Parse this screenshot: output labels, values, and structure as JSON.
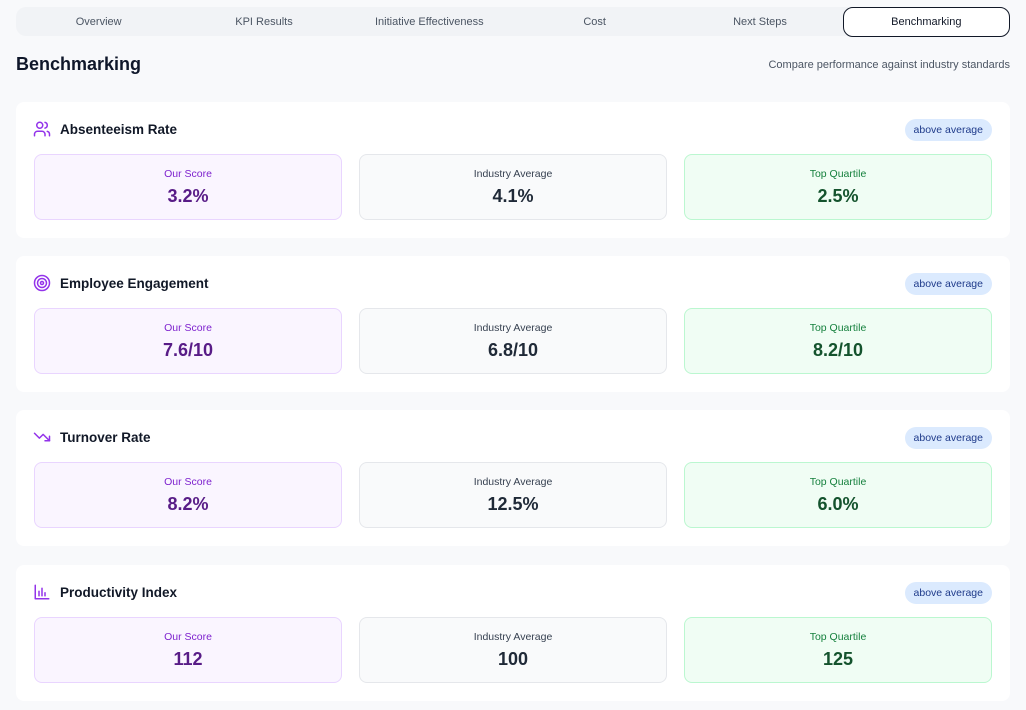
{
  "tabs": [
    {
      "label": "Overview",
      "active": false
    },
    {
      "label": "KPI Results",
      "active": false
    },
    {
      "label": "Initiative Effectiveness",
      "active": false
    },
    {
      "label": "Cost",
      "active": false
    },
    {
      "label": "Next Steps",
      "active": false
    },
    {
      "label": "Benchmarking",
      "active": true
    }
  ],
  "page": {
    "title": "Benchmarking",
    "subtitle": "Compare performance against industry standards"
  },
  "labels": {
    "our_score": "Our Score",
    "industry_average": "Industry Average",
    "top_quartile": "Top Quartile"
  },
  "colors": {
    "accent": "#9333ea",
    "badge_bg": "#dbeafe",
    "our_score_bg": "#faf5ff",
    "top_quartile_bg": "#f0fdf4"
  },
  "metrics": [
    {
      "name": "Absenteeism Rate",
      "icon": "users-icon",
      "badge": "above average",
      "our_score": "3.2%",
      "industry_average": "4.1%",
      "top_quartile": "2.5%",
      "top_label": "Top Quartile"
    },
    {
      "name": "Employee Engagement",
      "icon": "target-icon",
      "badge": "above average",
      "our_score": "7.6/10",
      "industry_average": "6.8/10",
      "top_quartile": "8.2/10",
      "top_label": "Top Quartile"
    },
    {
      "name": "Turnover Rate",
      "icon": "trending-down-icon",
      "badge": "above average",
      "our_score": "8.2%",
      "industry_average": "12.5%",
      "top_quartile": "6.0%",
      "top_label": "Top Quartile"
    },
    {
      "name": "Productivity Index",
      "icon": "bar-chart-icon",
      "badge": "above average",
      "our_score": "112",
      "industry_average": "100",
      "top_quartile": "125",
      "top_label": "Top Quartile"
    }
  ]
}
